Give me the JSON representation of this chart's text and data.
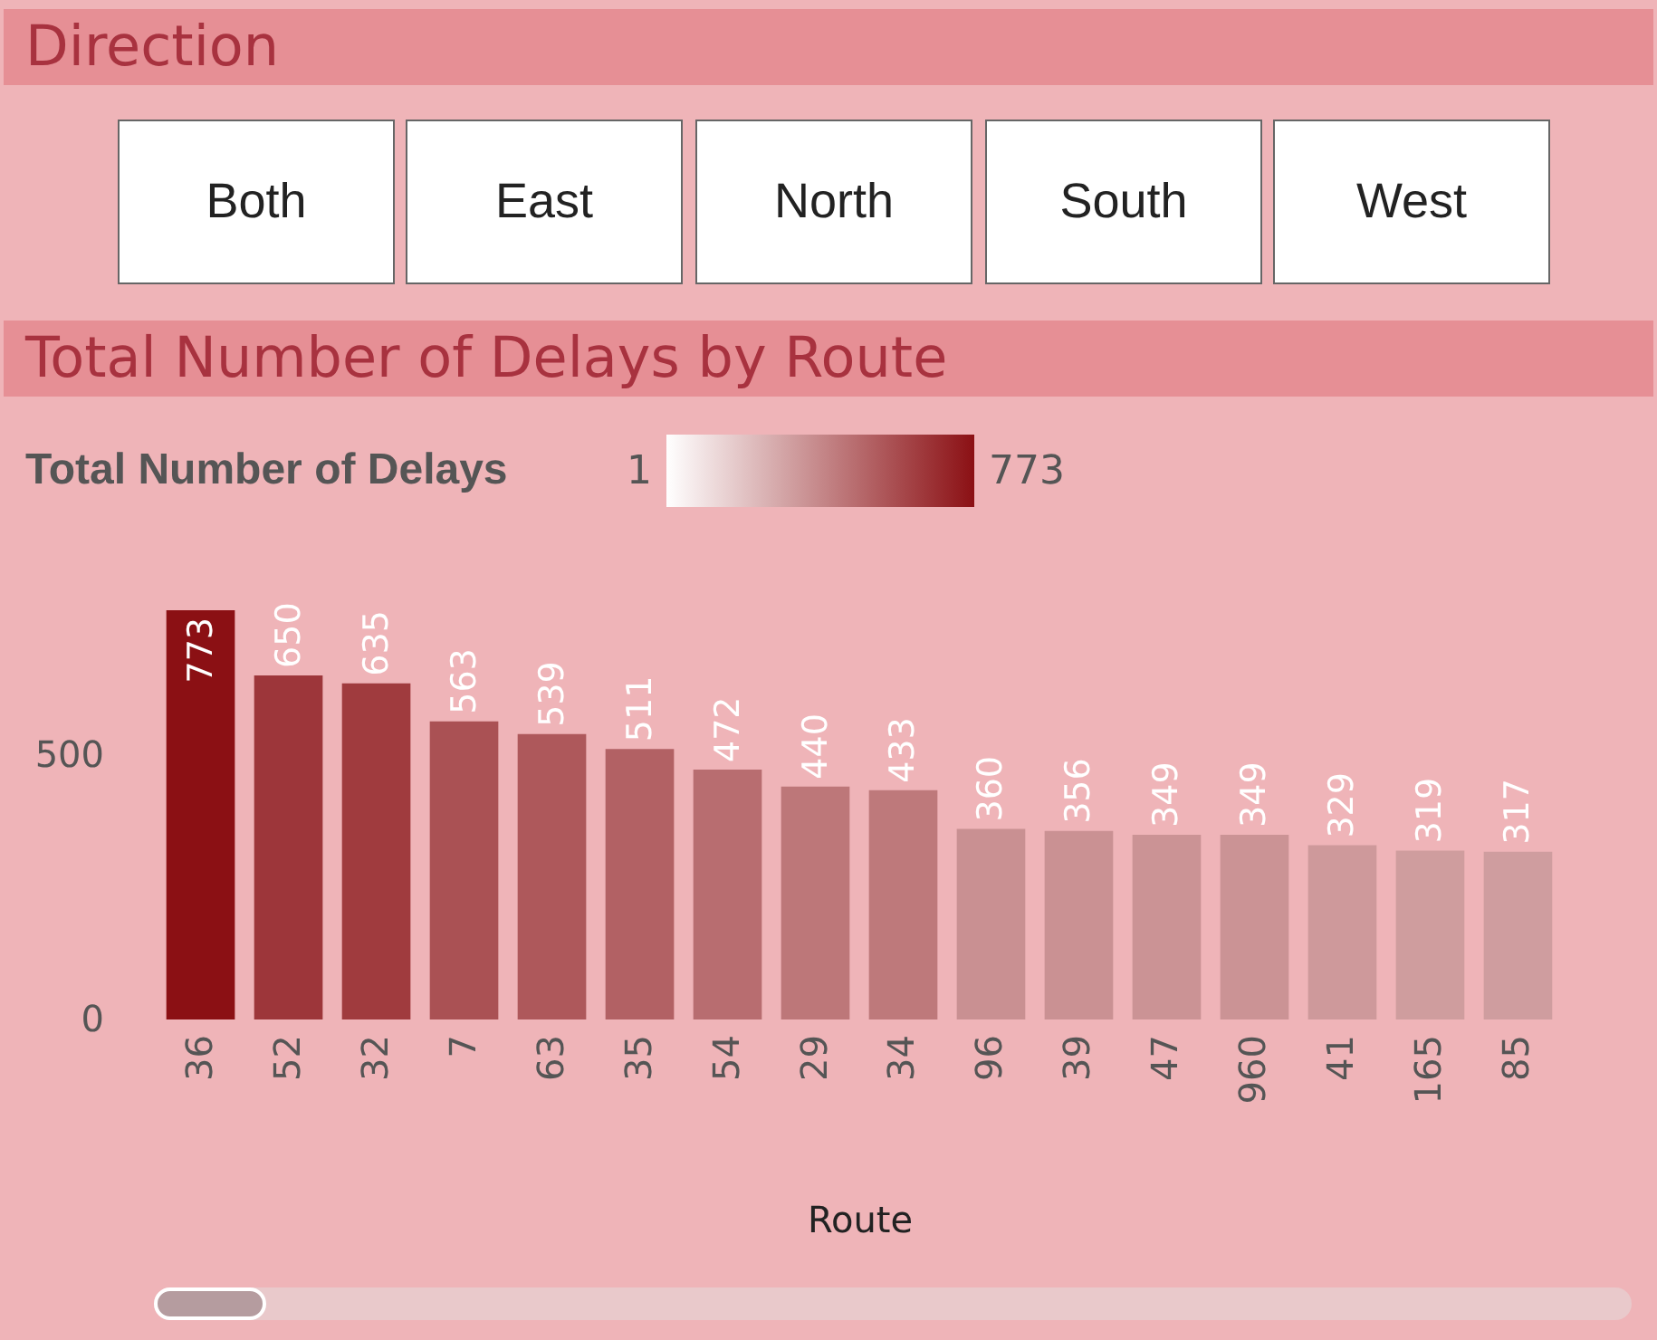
{
  "chart_data": [
    {
      "type": "other",
      "title": "Direction",
      "annotations": [
        "Both",
        "East",
        "North",
        "South",
        "West"
      ]
    },
    {
      "type": "bar",
      "title": "Total Number of Delays by Route",
      "xlabel": "Route",
      "clabel": "Total Number of Delays",
      "clim": [
        1,
        773
      ],
      "cticks": [
        1,
        773
      ],
      "colors": [
        "#8b1014",
        "#9d363a",
        "#a03b3e",
        "#aa5154",
        "#ae585b",
        "#b26164",
        "#b86d70",
        "#bd7779",
        "#be797b",
        "#c99092",
        "#ca9193",
        "#cb9395",
        "#cb9395",
        "#ce999b",
        "#cf9d9e",
        "#cf9d9f"
      ],
      "categories": [
        "36",
        "52",
        "32",
        "7",
        "63",
        "35",
        "54",
        "29",
        "34",
        "96",
        "39",
        "47",
        "960",
        "41",
        "165",
        "85"
      ],
      "values": [
        773,
        650,
        635,
        563,
        539,
        511,
        472,
        440,
        433,
        360,
        356,
        349,
        349,
        329,
        319,
        317
      ],
      "ylim": [
        0,
        773
      ],
      "yticks": [
        0,
        500
      ],
      "grid": false,
      "data_labels": true
    }
  ]
}
